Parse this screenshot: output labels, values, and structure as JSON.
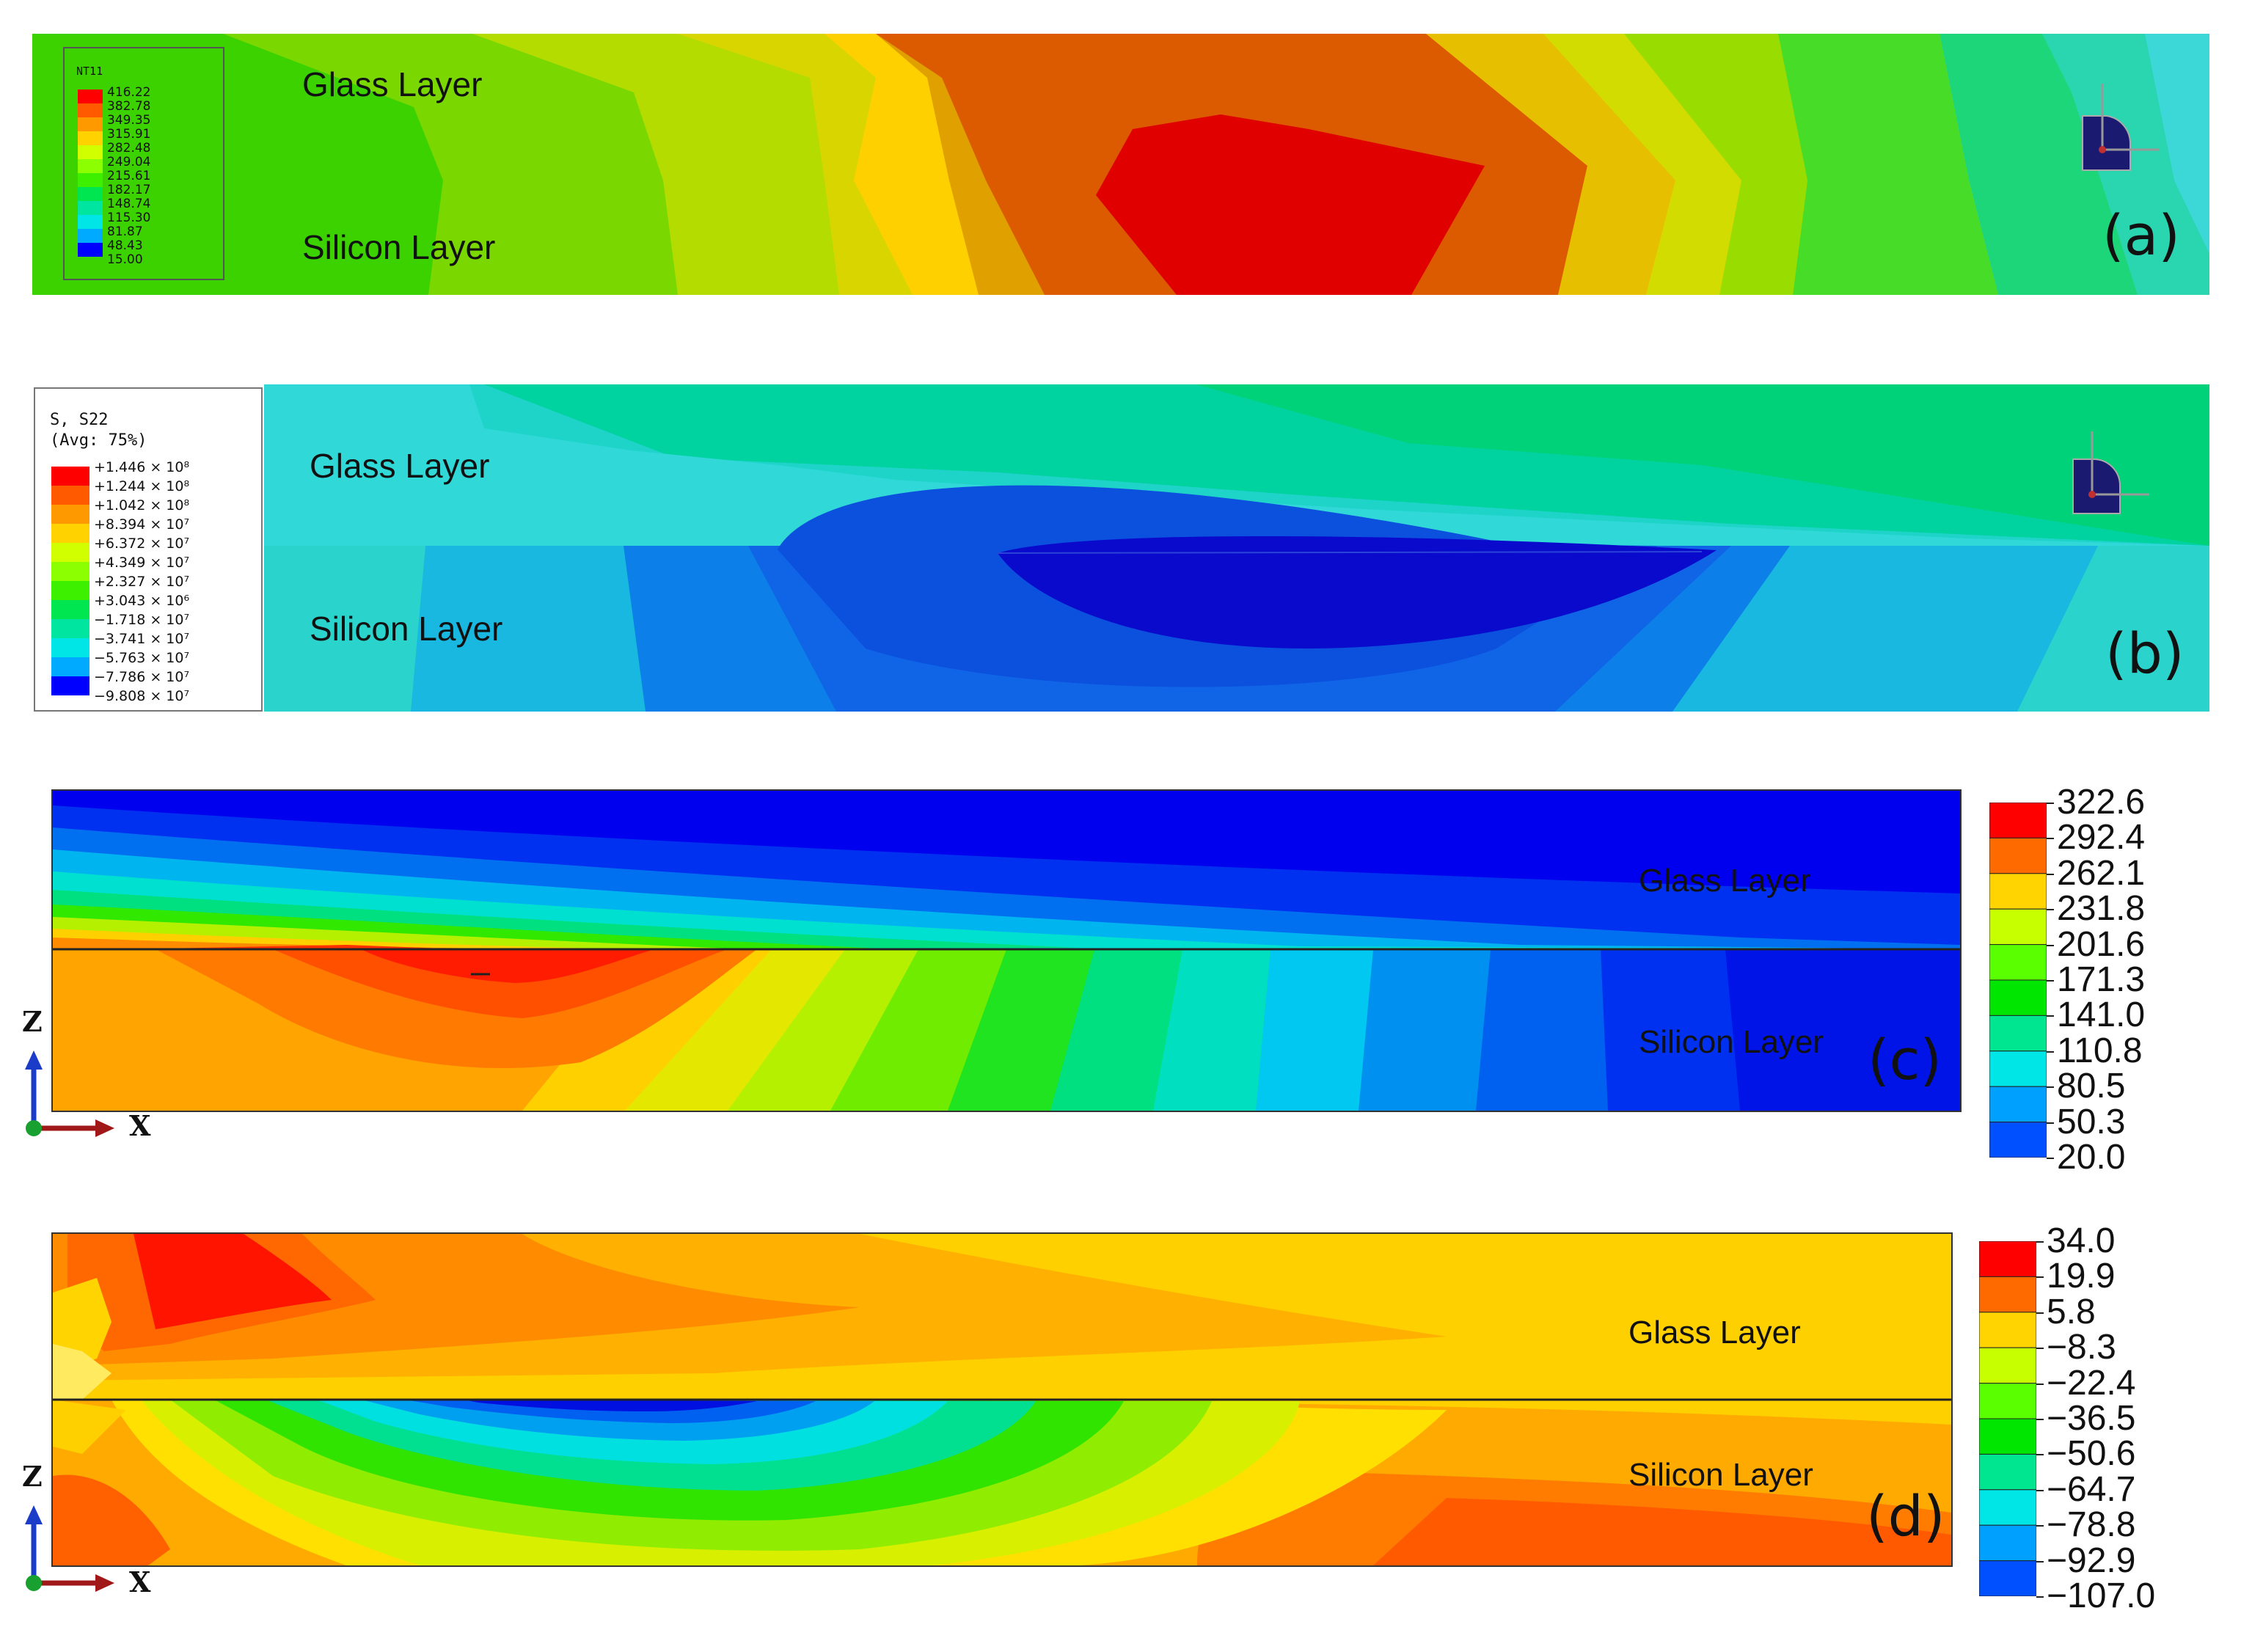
{
  "panel_a": {
    "legend_title": "NT11",
    "legend_values": [
      "416.22",
      "382.78",
      "349.35",
      "315.91",
      "282.48",
      "249.04",
      "215.61",
      "182.17",
      "148.74",
      "115.30",
      "81.87",
      "48.43",
      "15.00"
    ],
    "glass_label": "Glass Layer",
    "silicon_label": "Silicon Layer",
    "panel_letter": "(a)"
  },
  "panel_b": {
    "legend_title_1": "S, S22",
    "legend_title_2": "(Avg: 75%)",
    "legend_values": [
      "+1.446 × 10⁸",
      "+1.244 × 10⁸",
      "+1.042 × 10⁸",
      "+8.394 × 10⁷",
      "+6.372 × 10⁷",
      "+4.349 × 10⁷",
      "+2.327 × 10⁷",
      "+3.043 × 10⁶",
      "−1.718 × 10⁷",
      "−3.741 × 10⁷",
      "−5.763 × 10⁷",
      "−7.786 × 10⁷",
      "−9.808 × 10⁷"
    ],
    "glass_label": "Glass Layer",
    "silicon_label": "Silicon Layer",
    "panel_letter": "(b)"
  },
  "panel_c": {
    "colorbar_values": [
      "322.6",
      "292.4",
      "262.1",
      "231.8",
      "201.6",
      "171.3",
      "141.0",
      "110.8",
      "80.5",
      "50.3",
      "20.0"
    ],
    "glass_label": "Glass Layer",
    "silicon_label": "Silicon Layer",
    "panel_letter": "(c)",
    "axis_z": "Z",
    "axis_x": "X"
  },
  "panel_d": {
    "colorbar_values": [
      "34.0",
      "19.9",
      "5.8",
      "−8.3",
      "−22.4",
      "−36.5",
      "−50.6",
      "−64.7",
      "−78.8",
      "−92.9",
      "−107.0"
    ],
    "glass_label": "Glass Layer",
    "silicon_label": "Silicon Layer",
    "panel_letter": "(d)",
    "axis_z": "Z",
    "axis_x": "X"
  },
  "colors": {
    "scale": [
      "#ff0000",
      "#ff5a00",
      "#ff9900",
      "#ffd200",
      "#d2ff00",
      "#8cff00",
      "#3cf000",
      "#00e650",
      "#00e6a0",
      "#00e6e6",
      "#00aaff",
      "#0064ff",
      "#0000ff"
    ]
  }
}
